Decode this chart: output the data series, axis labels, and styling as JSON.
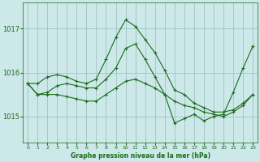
{
  "xlabel": "Graphe pression niveau de la mer (hPa)",
  "bg_color": "#cce8e8",
  "line_color": "#1a6b1a",
  "grid_color": "#99bbbb",
  "ylim": [
    1014.4,
    1017.6
  ],
  "xlim": [
    -0.5,
    23.5
  ],
  "yticks": [
    1015,
    1016,
    1017
  ],
  "xticks": [
    0,
    1,
    2,
    3,
    4,
    5,
    6,
    7,
    8,
    9,
    10,
    11,
    12,
    13,
    14,
    15,
    16,
    17,
    18,
    19,
    20,
    21,
    22,
    23
  ],
  "line1_x": [
    0,
    1,
    2,
    3,
    4,
    5,
    6,
    7,
    8,
    9,
    10,
    11,
    12,
    13,
    14,
    15,
    16,
    17,
    18,
    19,
    20,
    21,
    22,
    23
  ],
  "line1_y": [
    1015.75,
    1015.75,
    1015.9,
    1015.95,
    1015.9,
    1015.8,
    1015.75,
    1015.85,
    1016.3,
    1016.8,
    1017.2,
    1017.05,
    1016.75,
    1016.45,
    1016.05,
    1015.6,
    1015.5,
    1015.3,
    1015.2,
    1015.1,
    1015.1,
    1015.15,
    1015.3,
    1015.5
  ],
  "line2_x": [
    0,
    1,
    2,
    3,
    4,
    5,
    6,
    7,
    8,
    9,
    10,
    11,
    12,
    13,
    14,
    15,
    16,
    17,
    18,
    19,
    20,
    21,
    22,
    23
  ],
  "line2_y": [
    1015.75,
    1015.5,
    1015.55,
    1015.7,
    1015.75,
    1015.7,
    1015.65,
    1015.65,
    1015.85,
    1016.1,
    1016.55,
    1016.65,
    1016.3,
    1015.9,
    1015.5,
    1014.85,
    1014.95,
    1015.05,
    1014.9,
    1015.0,
    1015.05,
    1015.55,
    1016.1,
    1016.6
  ],
  "line3_x": [
    0,
    1,
    2,
    3,
    4,
    5,
    6,
    7,
    8,
    9,
    10,
    11,
    12,
    13,
    14,
    15,
    16,
    17,
    18,
    19,
    20,
    21,
    22,
    23
  ],
  "line3_y": [
    1015.75,
    1015.5,
    1015.5,
    1015.5,
    1015.45,
    1015.4,
    1015.35,
    1015.35,
    1015.5,
    1015.65,
    1015.8,
    1015.85,
    1015.75,
    1015.65,
    1015.5,
    1015.35,
    1015.25,
    1015.2,
    1015.1,
    1015.05,
    1015.0,
    1015.1,
    1015.25,
    1015.5
  ]
}
